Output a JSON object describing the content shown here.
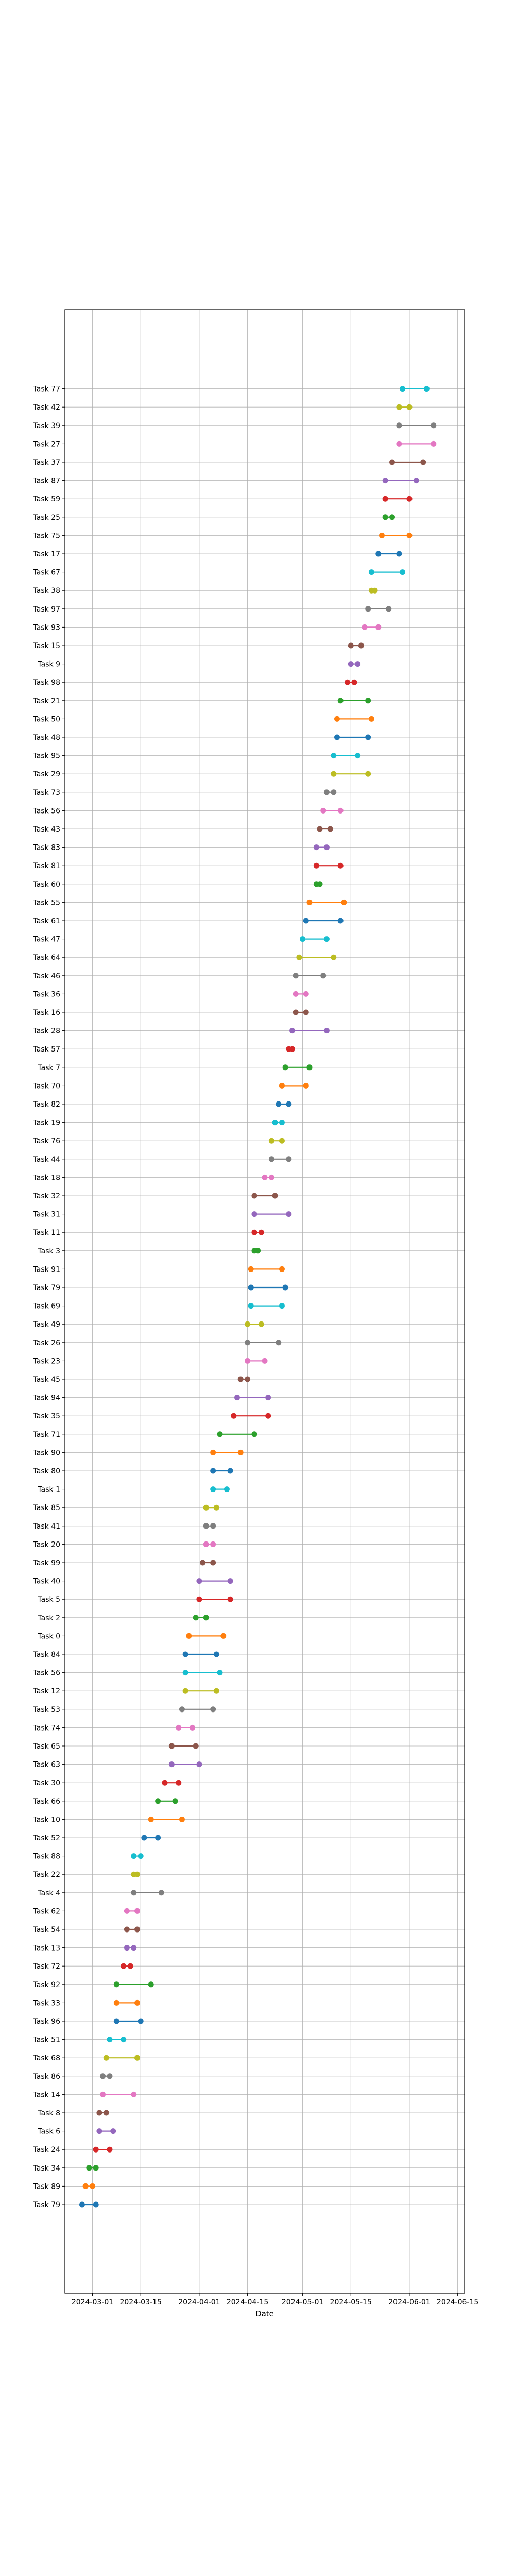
{
  "chart_data": {
    "type": "dumbbell",
    "xlabel": "Date",
    "ylabel": "",
    "title": "",
    "grid": true,
    "x_ticks": [
      "2024-03-01",
      "2024-03-15",
      "2024-04-01",
      "2024-04-15",
      "2024-05-01",
      "2024-05-15",
      "2024-06-01",
      "2024-06-15"
    ],
    "xlim": [
      "2024-02-22",
      "2024-06-17"
    ],
    "tasks": [
      {
        "name": "Task 79",
        "start": "2024-02-27",
        "end": "2024-03-02",
        "color": "#1f77b4"
      },
      {
        "name": "Task 89",
        "start": "2024-02-28",
        "end": "2024-03-01",
        "color": "#ff7f0e"
      },
      {
        "name": "Task 34",
        "start": "2024-02-29",
        "end": "2024-03-02",
        "color": "#2ca02c"
      },
      {
        "name": "Task 24",
        "start": "2024-03-02",
        "end": "2024-03-06",
        "color": "#d62728"
      },
      {
        "name": "Task 6",
        "start": "2024-03-03",
        "end": "2024-03-07",
        "color": "#9467bd"
      },
      {
        "name": "Task 8",
        "start": "2024-03-03",
        "end": "2024-03-05",
        "color": "#8c564b"
      },
      {
        "name": "Task 14",
        "start": "2024-03-04",
        "end": "2024-03-13",
        "color": "#e377c2"
      },
      {
        "name": "Task 86",
        "start": "2024-03-04",
        "end": "2024-03-06",
        "color": "#7f7f7f"
      },
      {
        "name": "Task 68",
        "start": "2024-03-05",
        "end": "2024-03-14",
        "color": "#bcbd22"
      },
      {
        "name": "Task 51",
        "start": "2024-03-06",
        "end": "2024-03-10",
        "color": "#17becf"
      },
      {
        "name": "Task 96",
        "start": "2024-03-08",
        "end": "2024-03-15",
        "color": "#1f77b4"
      },
      {
        "name": "Task 33",
        "start": "2024-03-08",
        "end": "2024-03-14",
        "color": "#ff7f0e"
      },
      {
        "name": "Task 92",
        "start": "2024-03-08",
        "end": "2024-03-18",
        "color": "#2ca02c"
      },
      {
        "name": "Task 72",
        "start": "2024-03-10",
        "end": "2024-03-12",
        "color": "#d62728"
      },
      {
        "name": "Task 13",
        "start": "2024-03-11",
        "end": "2024-03-13",
        "color": "#9467bd"
      },
      {
        "name": "Task 54",
        "start": "2024-03-11",
        "end": "2024-03-14",
        "color": "#8c564b"
      },
      {
        "name": "Task 62",
        "start": "2024-03-11",
        "end": "2024-03-14",
        "color": "#e377c2"
      },
      {
        "name": "Task 4",
        "start": "2024-03-13",
        "end": "2024-03-21",
        "color": "#7f7f7f"
      },
      {
        "name": "Task 22",
        "start": "2024-03-13",
        "end": "2024-03-14",
        "color": "#bcbd22"
      },
      {
        "name": "Task 88",
        "start": "2024-03-13",
        "end": "2024-03-15",
        "color": "#17becf"
      },
      {
        "name": "Task 52",
        "start": "2024-03-16",
        "end": "2024-03-20",
        "color": "#1f77b4"
      },
      {
        "name": "Task 10",
        "start": "2024-03-18",
        "end": "2024-03-27",
        "color": "#ff7f0e"
      },
      {
        "name": "Task 66",
        "start": "2024-03-20",
        "end": "2024-03-25",
        "color": "#2ca02c"
      },
      {
        "name": "Task 30",
        "start": "2024-03-22",
        "end": "2024-03-26",
        "color": "#d62728"
      },
      {
        "name": "Task 63",
        "start": "2024-03-24",
        "end": "2024-04-01",
        "color": "#9467bd"
      },
      {
        "name": "Task 65",
        "start": "2024-03-24",
        "end": "2024-03-31",
        "color": "#8c564b"
      },
      {
        "name": "Task 74",
        "start": "2024-03-26",
        "end": "2024-03-30",
        "color": "#e377c2"
      },
      {
        "name": "Task 53",
        "start": "2024-03-27",
        "end": "2024-04-05",
        "color": "#7f7f7f"
      },
      {
        "name": "Task 12",
        "start": "2024-03-28",
        "end": "2024-04-06",
        "color": "#bcbd22"
      },
      {
        "name": "Task 56",
        "start": "2024-03-28",
        "end": "2024-04-07",
        "color": "#17becf"
      },
      {
        "name": "Task 84",
        "start": "2024-03-28",
        "end": "2024-04-06",
        "color": "#1f77b4"
      },
      {
        "name": "Task 0",
        "start": "2024-03-29",
        "end": "2024-04-08",
        "color": "#ff7f0e"
      },
      {
        "name": "Task 2",
        "start": "2024-03-31",
        "end": "2024-04-03",
        "color": "#2ca02c"
      },
      {
        "name": "Task 5",
        "start": "2024-04-01",
        "end": "2024-04-10",
        "color": "#d62728"
      },
      {
        "name": "Task 40",
        "start": "2024-04-01",
        "end": "2024-04-10",
        "color": "#9467bd"
      },
      {
        "name": "Task 99",
        "start": "2024-04-02",
        "end": "2024-04-05",
        "color": "#8c564b"
      },
      {
        "name": "Task 20",
        "start": "2024-04-03",
        "end": "2024-04-05",
        "color": "#e377c2"
      },
      {
        "name": "Task 41",
        "start": "2024-04-03",
        "end": "2024-04-05",
        "color": "#7f7f7f"
      },
      {
        "name": "Task 85",
        "start": "2024-04-03",
        "end": "2024-04-06",
        "color": "#bcbd22"
      },
      {
        "name": "Task 1",
        "start": "2024-04-05",
        "end": "2024-04-09",
        "color": "#17becf"
      },
      {
        "name": "Task 80",
        "start": "2024-04-05",
        "end": "2024-04-10",
        "color": "#1f77b4"
      },
      {
        "name": "Task 90",
        "start": "2024-04-05",
        "end": "2024-04-13",
        "color": "#ff7f0e"
      },
      {
        "name": "Task 71",
        "start": "2024-04-07",
        "end": "2024-04-17",
        "color": "#2ca02c"
      },
      {
        "name": "Task 35",
        "start": "2024-04-11",
        "end": "2024-04-21",
        "color": "#d62728"
      },
      {
        "name": "Task 94",
        "start": "2024-04-12",
        "end": "2024-04-21",
        "color": "#9467bd"
      },
      {
        "name": "Task 45",
        "start": "2024-04-13",
        "end": "2024-04-15",
        "color": "#8c564b"
      },
      {
        "name": "Task 23",
        "start": "2024-04-15",
        "end": "2024-04-20",
        "color": "#e377c2"
      },
      {
        "name": "Task 26",
        "start": "2024-04-15",
        "end": "2024-04-24",
        "color": "#7f7f7f"
      },
      {
        "name": "Task 49",
        "start": "2024-04-15",
        "end": "2024-04-19",
        "color": "#bcbd22"
      },
      {
        "name": "Task 69",
        "start": "2024-04-16",
        "end": "2024-04-25",
        "color": "#17becf"
      },
      {
        "name": "Task 79",
        "start": "2024-04-16",
        "end": "2024-04-26",
        "color": "#1f77b4"
      },
      {
        "name": "Task 91",
        "start": "2024-04-16",
        "end": "2024-04-25",
        "color": "#ff7f0e"
      },
      {
        "name": "Task 3",
        "start": "2024-04-17",
        "end": "2024-04-18",
        "color": "#2ca02c"
      },
      {
        "name": "Task 11",
        "start": "2024-04-17",
        "end": "2024-04-19",
        "color": "#d62728"
      },
      {
        "name": "Task 31",
        "start": "2024-04-17",
        "end": "2024-04-27",
        "color": "#9467bd"
      },
      {
        "name": "Task 32",
        "start": "2024-04-17",
        "end": "2024-04-23",
        "color": "#8c564b"
      },
      {
        "name": "Task 18",
        "start": "2024-04-20",
        "end": "2024-04-22",
        "color": "#e377c2"
      },
      {
        "name": "Task 44",
        "start": "2024-04-22",
        "end": "2024-04-27",
        "color": "#7f7f7f"
      },
      {
        "name": "Task 76",
        "start": "2024-04-22",
        "end": "2024-04-25",
        "color": "#bcbd22"
      },
      {
        "name": "Task 19",
        "start": "2024-04-23",
        "end": "2024-04-25",
        "color": "#17becf"
      },
      {
        "name": "Task 82",
        "start": "2024-04-24",
        "end": "2024-04-27",
        "color": "#1f77b4"
      },
      {
        "name": "Task 70",
        "start": "2024-04-25",
        "end": "2024-05-02",
        "color": "#ff7f0e"
      },
      {
        "name": "Task 7",
        "start": "2024-04-26",
        "end": "2024-05-03",
        "color": "#2ca02c"
      },
      {
        "name": "Task 57",
        "start": "2024-04-27",
        "end": "2024-04-28",
        "color": "#d62728"
      },
      {
        "name": "Task 28",
        "start": "2024-04-28",
        "end": "2024-05-08",
        "color": "#9467bd"
      },
      {
        "name": "Task 16",
        "start": "2024-04-29",
        "end": "2024-05-02",
        "color": "#8c564b"
      },
      {
        "name": "Task 36",
        "start": "2024-04-29",
        "end": "2024-05-02",
        "color": "#e377c2"
      },
      {
        "name": "Task 46",
        "start": "2024-04-29",
        "end": "2024-05-07",
        "color": "#7f7f7f"
      },
      {
        "name": "Task 64",
        "start": "2024-04-30",
        "end": "2024-05-10",
        "color": "#bcbd22"
      },
      {
        "name": "Task 47",
        "start": "2024-05-01",
        "end": "2024-05-08",
        "color": "#17becf"
      },
      {
        "name": "Task 61",
        "start": "2024-05-02",
        "end": "2024-05-12",
        "color": "#1f77b4"
      },
      {
        "name": "Task 55",
        "start": "2024-05-03",
        "end": "2024-05-13",
        "color": "#ff7f0e"
      },
      {
        "name": "Task 60",
        "start": "2024-05-05",
        "end": "2024-05-06",
        "color": "#2ca02c"
      },
      {
        "name": "Task 81",
        "start": "2024-05-05",
        "end": "2024-05-12",
        "color": "#d62728"
      },
      {
        "name": "Task 83",
        "start": "2024-05-05",
        "end": "2024-05-08",
        "color": "#9467bd"
      },
      {
        "name": "Task 43",
        "start": "2024-05-06",
        "end": "2024-05-09",
        "color": "#8c564b"
      },
      {
        "name": "Task 56",
        "start": "2024-05-07",
        "end": "2024-05-12",
        "color": "#e377c2"
      },
      {
        "name": "Task 73",
        "start": "2024-05-08",
        "end": "2024-05-10",
        "color": "#7f7f7f"
      },
      {
        "name": "Task 29",
        "start": "2024-05-10",
        "end": "2024-05-20",
        "color": "#bcbd22"
      },
      {
        "name": "Task 95",
        "start": "2024-05-10",
        "end": "2024-05-17",
        "color": "#17becf"
      },
      {
        "name": "Task 48",
        "start": "2024-05-11",
        "end": "2024-05-20",
        "color": "#1f77b4"
      },
      {
        "name": "Task 50",
        "start": "2024-05-11",
        "end": "2024-05-21",
        "color": "#ff7f0e"
      },
      {
        "name": "Task 21",
        "start": "2024-05-12",
        "end": "2024-05-20",
        "color": "#2ca02c"
      },
      {
        "name": "Task 98",
        "start": "2024-05-14",
        "end": "2024-05-16",
        "color": "#d62728"
      },
      {
        "name": "Task 9",
        "start": "2024-05-15",
        "end": "2024-05-17",
        "color": "#9467bd"
      },
      {
        "name": "Task 15",
        "start": "2024-05-15",
        "end": "2024-05-18",
        "color": "#8c564b"
      },
      {
        "name": "Task 93",
        "start": "2024-05-19",
        "end": "2024-05-23",
        "color": "#e377c2"
      },
      {
        "name": "Task 97",
        "start": "2024-05-20",
        "end": "2024-05-26",
        "color": "#7f7f7f"
      },
      {
        "name": "Task 38",
        "start": "2024-05-21",
        "end": "2024-05-22",
        "color": "#bcbd22"
      },
      {
        "name": "Task 67",
        "start": "2024-05-21",
        "end": "2024-05-30",
        "color": "#17becf"
      },
      {
        "name": "Task 17",
        "start": "2024-05-23",
        "end": "2024-05-29",
        "color": "#1f77b4"
      },
      {
        "name": "Task 75",
        "start": "2024-05-24",
        "end": "2024-06-01",
        "color": "#ff7f0e"
      },
      {
        "name": "Task 25",
        "start": "2024-05-25",
        "end": "2024-05-27",
        "color": "#2ca02c"
      },
      {
        "name": "Task 59",
        "start": "2024-05-25",
        "end": "2024-06-01",
        "color": "#d62728"
      },
      {
        "name": "Task 87",
        "start": "2024-05-25",
        "end": "2024-06-03",
        "color": "#9467bd"
      },
      {
        "name": "Task 37",
        "start": "2024-05-27",
        "end": "2024-06-05",
        "color": "#8c564b"
      },
      {
        "name": "Task 27",
        "start": "2024-05-29",
        "end": "2024-06-08",
        "color": "#e377c2"
      },
      {
        "name": "Task 39",
        "start": "2024-05-29",
        "end": "2024-06-08",
        "color": "#7f7f7f"
      },
      {
        "name": "Task 42",
        "start": "2024-05-29",
        "end": "2024-06-01",
        "color": "#bcbd22"
      },
      {
        "name": "Task 77",
        "start": "2024-05-30",
        "end": "2024-06-06",
        "color": "#17becf"
      }
    ]
  }
}
